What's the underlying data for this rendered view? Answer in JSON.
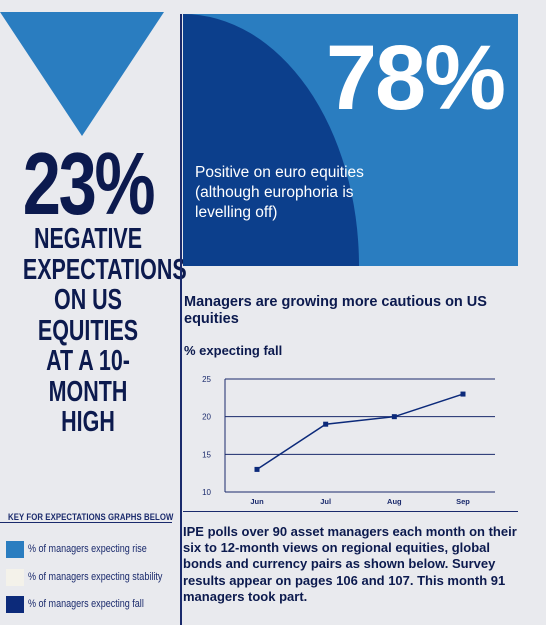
{
  "headline": {
    "value": "23%",
    "text_lines": [
      "NEGATIVE",
      "EXPECTATIONS",
      "ON US",
      "EQUITIES",
      "AT A 10-MONTH",
      "HIGH"
    ]
  },
  "highlight": {
    "value": "78%",
    "text": "Positive on euro equities (although europhoria is levelling off)"
  },
  "chart_title": "Managers are growing more cautious on US equities",
  "chart_subtitle": "% expecting fall",
  "chart_data": {
    "type": "line",
    "categories": [
      "Jun",
      "Jul",
      "Aug",
      "Sep"
    ],
    "series": [
      {
        "values": [
          13,
          19,
          20,
          23
        ]
      }
    ],
    "ylim": [
      10,
      25
    ],
    "yticks": [
      "25",
      "20",
      "15",
      "10"
    ],
    "grid": true
  },
  "note": "IPE polls over 90 asset managers each month on their six to 12-month views on regional equities, global bonds and currency pairs as shown below. Survey results appear on pages 106 and 107. This month 91 managers took part.",
  "key": {
    "title": "KEY FOR EXPECTATIONS GRAPHS BELOW",
    "items": [
      {
        "label": "% of managers expecting rise",
        "color": "#2a7dc0"
      },
      {
        "label": "% of managers expecting stability",
        "color": "#f4f2ea"
      },
      {
        "label": "% of managers expecting fall",
        "color": "#0c2a7a"
      }
    ]
  },
  "colors": {
    "navy": "#0c1a4e",
    "accent_blue": "#2a7dc0",
    "dark_blue": "#0c2a7a",
    "background": "#e9eaee"
  }
}
